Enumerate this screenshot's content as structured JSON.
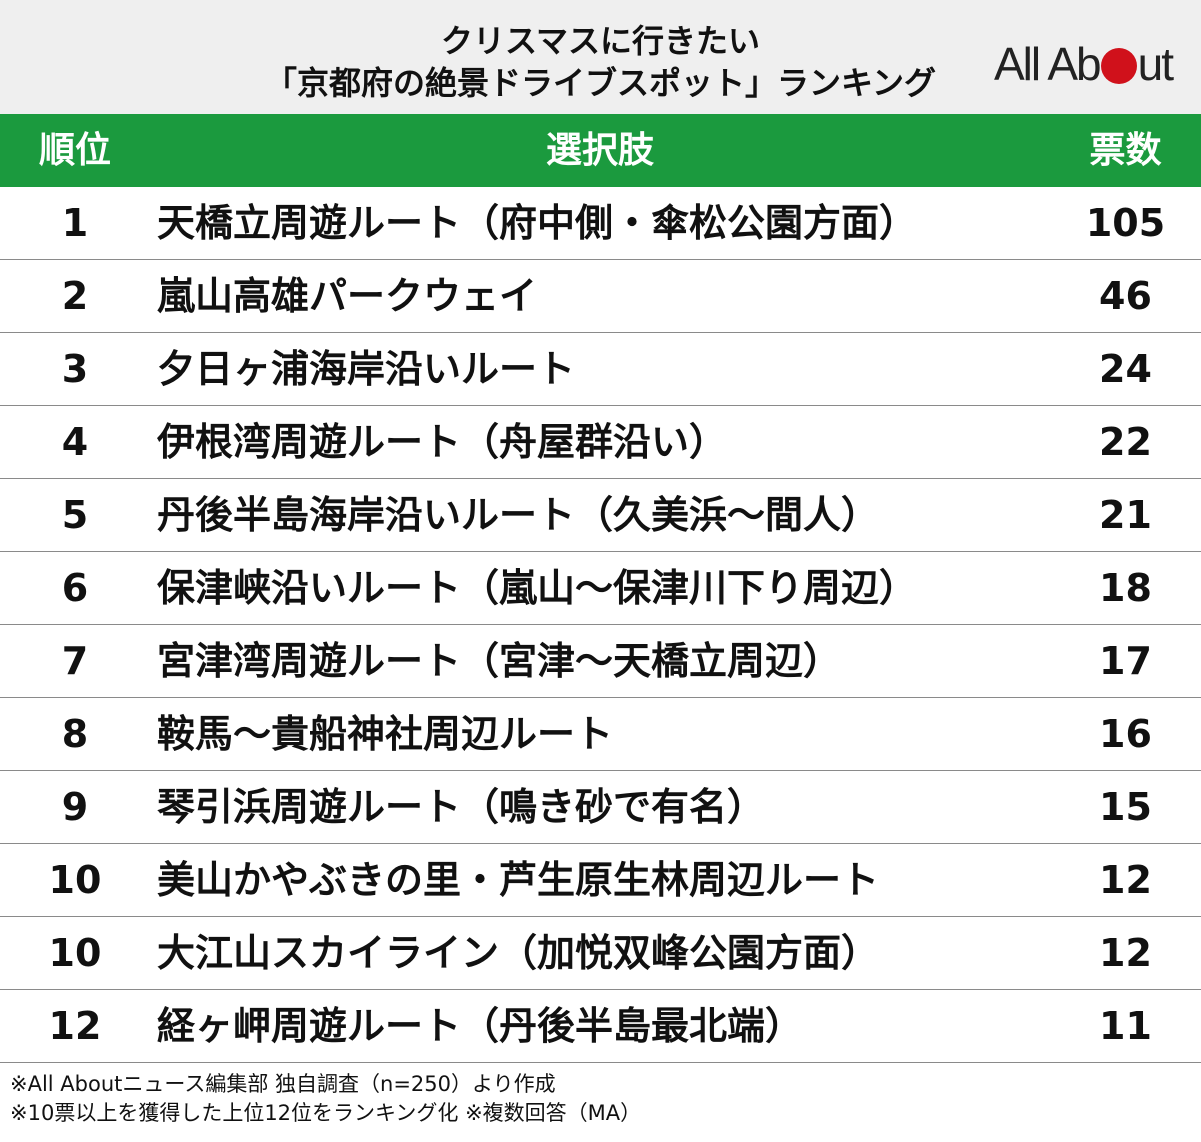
{
  "header": {
    "title_line1": "クリスマスに行きたい",
    "title_line2": "「京都府の絶景ドライブスポット」ランキング",
    "logo_text_left": "All Ab",
    "logo_text_right": "ut",
    "logo_dot_color": "#d0111b"
  },
  "table": {
    "header_color": "#1b9a3e",
    "columns": {
      "rank": "順位",
      "choice": "選択肢",
      "votes": "票数"
    },
    "rows": [
      {
        "rank": "1",
        "choice": "天橋立周遊ルート（府中側・傘松公園方面）",
        "votes": "105"
      },
      {
        "rank": "2",
        "choice": "嵐山高雄パークウェイ",
        "votes": "46"
      },
      {
        "rank": "3",
        "choice": "夕日ヶ浦海岸沿いルート",
        "votes": "24"
      },
      {
        "rank": "4",
        "choice": "伊根湾周遊ルート（舟屋群沿い）",
        "votes": "22"
      },
      {
        "rank": "5",
        "choice": "丹後半島海岸沿いルート（久美浜〜間人）",
        "votes": "21"
      },
      {
        "rank": "6",
        "choice": "保津峡沿いルート（嵐山〜保津川下り周辺）",
        "votes": "18"
      },
      {
        "rank": "7",
        "choice": "宮津湾周遊ルート（宮津〜天橋立周辺）",
        "votes": "17"
      },
      {
        "rank": "8",
        "choice": "鞍馬〜貴船神社周辺ルート",
        "votes": "16"
      },
      {
        "rank": "9",
        "choice": "琴引浜周遊ルート（鳴き砂で有名）",
        "votes": "15"
      },
      {
        "rank": "10",
        "choice": "美山かやぶきの里・芦生原生林周辺ルート",
        "votes": "12"
      },
      {
        "rank": "10",
        "choice": "大江山スカイライン（加悦双峰公園方面）",
        "votes": "12"
      },
      {
        "rank": "12",
        "choice": "経ヶ岬周遊ルート（丹後半島最北端）",
        "votes": "11"
      }
    ]
  },
  "footer": {
    "note1": "※All Aboutニュース編集部 独自調査（n=250）より作成",
    "note2": "※10票以上を獲得した上位12位をランキング化 ※複数回答（MA）"
  }
}
